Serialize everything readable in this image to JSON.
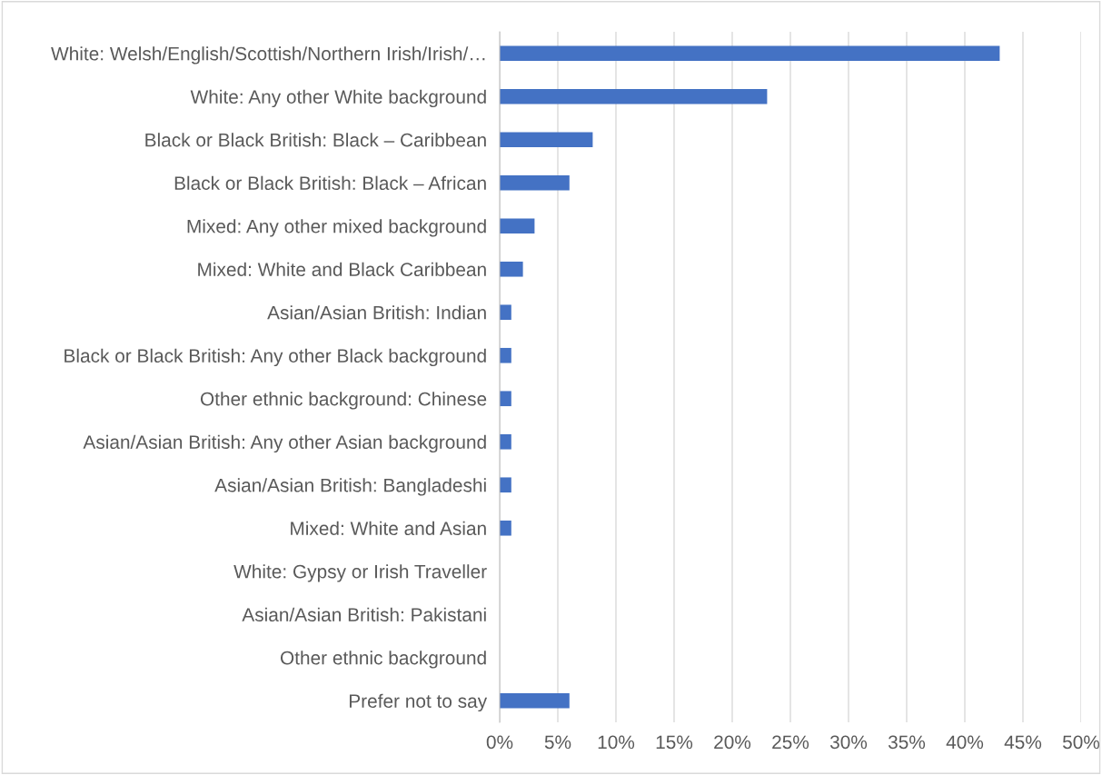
{
  "chart_data": {
    "type": "bar",
    "orientation": "horizontal",
    "categories": [
      "White: Welsh/English/Scottish/Northern Irish/Irish/…",
      "White: Any other White background",
      "Black or Black British: Black – Caribbean",
      "Black or Black British: Black – African",
      "Mixed: Any other mixed background",
      "Mixed: White and Black Caribbean",
      "Asian/Asian British: Indian",
      "Black or Black British: Any other Black background",
      "Other ethnic background: Chinese",
      "Asian/Asian British: Any other Asian background",
      "Asian/Asian British: Bangladeshi",
      "Mixed: White and Asian",
      "White: Gypsy or Irish Traveller",
      "Asian/Asian British: Pakistani",
      "Other ethnic background",
      "Prefer not to say"
    ],
    "values": [
      43,
      23,
      8,
      6,
      3,
      2,
      1,
      1,
      1,
      1,
      1,
      1,
      0,
      0,
      0,
      6
    ],
    "color": "#4472c4",
    "xlim": [
      0,
      50
    ],
    "xticks": [
      {
        "value": 0,
        "label": "0%"
      },
      {
        "value": 5,
        "label": "5%"
      },
      {
        "value": 10,
        "label": "10%"
      },
      {
        "value": 15,
        "label": "15%"
      },
      {
        "value": 20,
        "label": "20%"
      },
      {
        "value": 25,
        "label": "25%"
      },
      {
        "value": 30,
        "label": "30%"
      },
      {
        "value": 35,
        "label": "35%"
      },
      {
        "value": 40,
        "label": "40%"
      },
      {
        "value": 45,
        "label": "45%"
      },
      {
        "value": 50,
        "label": "50%"
      }
    ],
    "grid": "x"
  }
}
